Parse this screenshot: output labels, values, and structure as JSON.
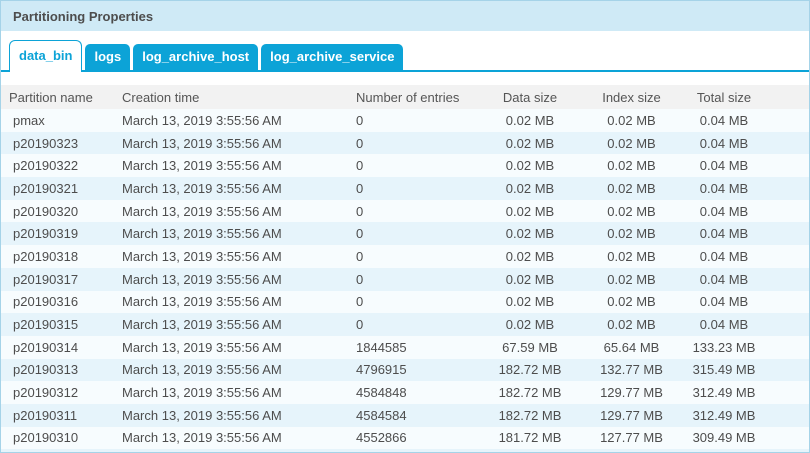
{
  "panel": {
    "title": "Partitioning Properties"
  },
  "tabs": [
    {
      "label": "data_bin",
      "active": true
    },
    {
      "label": "logs",
      "active": false
    },
    {
      "label": "log_archive_host",
      "active": false
    },
    {
      "label": "log_archive_service",
      "active": false
    }
  ],
  "table": {
    "columns": [
      "Partition name",
      "Creation time",
      "Number of entries",
      "Data size",
      "Index size",
      "Total size"
    ],
    "rows": [
      [
        "pmax",
        "March 13, 2019 3:55:56 AM",
        "0",
        "0.02 MB",
        "0.02 MB",
        "0.04 MB"
      ],
      [
        "p20190323",
        "March 13, 2019 3:55:56 AM",
        "0",
        "0.02 MB",
        "0.02 MB",
        "0.04 MB"
      ],
      [
        "p20190322",
        "March 13, 2019 3:55:56 AM",
        "0",
        "0.02 MB",
        "0.02 MB",
        "0.04 MB"
      ],
      [
        "p20190321",
        "March 13, 2019 3:55:56 AM",
        "0",
        "0.02 MB",
        "0.02 MB",
        "0.04 MB"
      ],
      [
        "p20190320",
        "March 13, 2019 3:55:56 AM",
        "0",
        "0.02 MB",
        "0.02 MB",
        "0.04 MB"
      ],
      [
        "p20190319",
        "March 13, 2019 3:55:56 AM",
        "0",
        "0.02 MB",
        "0.02 MB",
        "0.04 MB"
      ],
      [
        "p20190318",
        "March 13, 2019 3:55:56 AM",
        "0",
        "0.02 MB",
        "0.02 MB",
        "0.04 MB"
      ],
      [
        "p20190317",
        "March 13, 2019 3:55:56 AM",
        "0",
        "0.02 MB",
        "0.02 MB",
        "0.04 MB"
      ],
      [
        "p20190316",
        "March 13, 2019 3:55:56 AM",
        "0",
        "0.02 MB",
        "0.02 MB",
        "0.04 MB"
      ],
      [
        "p20190315",
        "March 13, 2019 3:55:56 AM",
        "0",
        "0.02 MB",
        "0.02 MB",
        "0.04 MB"
      ],
      [
        "p20190314",
        "March 13, 2019 3:55:56 AM",
        "1844585",
        "67.59 MB",
        "65.64 MB",
        "133.23 MB"
      ],
      [
        "p20190313",
        "March 13, 2019 3:55:56 AM",
        "4796915",
        "182.72 MB",
        "132.77 MB",
        "315.49 MB"
      ],
      [
        "p20190312",
        "March 13, 2019 3:55:56 AM",
        "4584848",
        "182.72 MB",
        "129.77 MB",
        "312.49 MB"
      ],
      [
        "p20190311",
        "March 13, 2019 3:55:56 AM",
        "4584584",
        "182.72 MB",
        "129.77 MB",
        "312.49 MB"
      ],
      [
        "p20190310",
        "March 13, 2019 3:55:56 AM",
        "4552866",
        "181.72 MB",
        "127.77 MB",
        "309.49 MB"
      ]
    ]
  },
  "colors": {
    "accent": "#0ca3d7",
    "titlebar_bg": "#cfeaf6",
    "panel_border": "#a5d3e8",
    "header_bg": "#f2f2f2",
    "row_odd": "#f7fcfe",
    "row_even": "#e6f4fb"
  }
}
